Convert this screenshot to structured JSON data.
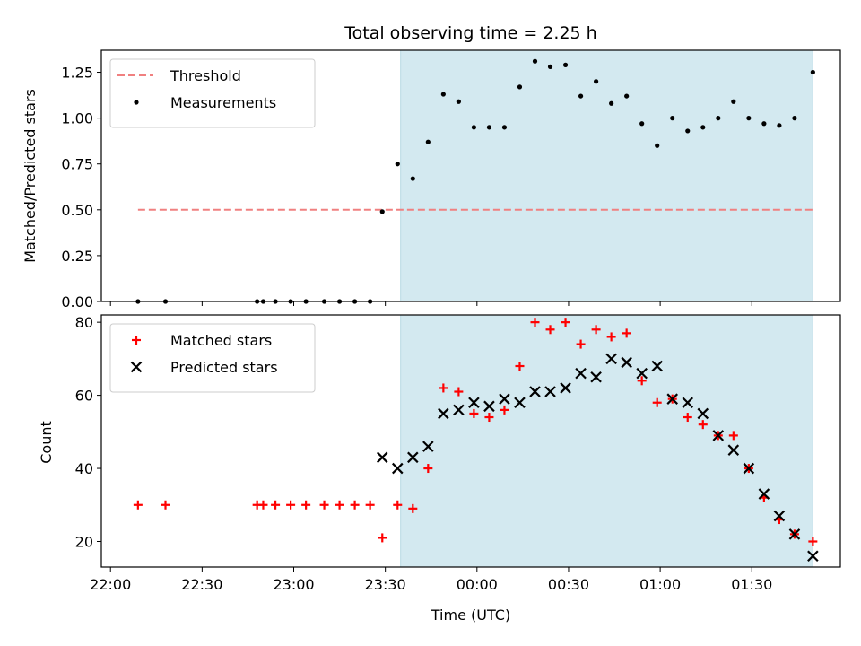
{
  "chart_data": {
    "type": "scatter",
    "title": "Total observing time = 2.25 h",
    "xlabel": "Time (UTC)",
    "x_tick_labels": [
      "22:00",
      "22:30",
      "23:00",
      "23:30",
      "00:00",
      "00:30",
      "01:00",
      "01:30"
    ],
    "x_ticks": [
      "22:00",
      "22:30",
      "23:00",
      "23:30",
      "00:00",
      "00:30",
      "01:00",
      "01:30"
    ],
    "x_range": [
      "21:57",
      "01:59"
    ],
    "shaded_interval": [
      "23:35",
      "01:50"
    ],
    "shade_color": "#d3e9f0",
    "panels": [
      {
        "ylabel": "Matched/Predicted stars",
        "ylim": [
          0,
          1.37
        ],
        "y_ticks": [
          0.0,
          0.25,
          0.5,
          0.75,
          1.0,
          1.25
        ],
        "y_tick_labels": [
          "0.00",
          "0.25",
          "0.50",
          "0.75",
          "1.00",
          "1.25"
        ],
        "legend_position": "top-left",
        "series": [
          {
            "name": "Threshold",
            "kind": "dashed-line",
            "color": "#f08080",
            "x": [
              "22:09",
              "01:50"
            ],
            "y": [
              0.5,
              0.5
            ]
          },
          {
            "name": "Measurements",
            "kind": "dot",
            "color": "#000000",
            "x": [
              "22:09",
              "22:18",
              "22:48",
              "22:50",
              "22:54",
              "22:59",
              "23:04",
              "23:10",
              "23:15",
              "23:20",
              "23:25",
              "23:29",
              "23:34",
              "23:39",
              "23:44",
              "23:49",
              "23:54",
              "23:59",
              "24:04",
              "24:09",
              "24:14",
              "24:19",
              "24:24",
              "24:29",
              "24:34",
              "24:39",
              "24:44",
              "24:49",
              "24:54",
              "24:59",
              "25:04",
              "25:09",
              "25:14",
              "25:19",
              "25:24",
              "25:29",
              "25:34",
              "25:39",
              "25:44",
              "25:50"
            ],
            "y": [
              0,
              0,
              0,
              0,
              0,
              0,
              0,
              0,
              0,
              0,
              0,
              0.49,
              0.75,
              0.67,
              0.87,
              1.13,
              1.09,
              0.95,
              0.95,
              0.95,
              1.17,
              1.31,
              1.28,
              1.29,
              1.12,
              1.2,
              1.08,
              1.12,
              0.97,
              0.85,
              1.0,
              0.93,
              0.95,
              1.0,
              1.09,
              1.0,
              0.97,
              0.96,
              1.0,
              1.25
            ]
          }
        ]
      },
      {
        "ylabel": "Count",
        "ylim": [
          13,
          82
        ],
        "y_ticks": [
          20,
          40,
          60,
          80
        ],
        "y_tick_labels": [
          "20",
          "40",
          "60",
          "80"
        ],
        "legend_position": "top-left",
        "series": [
          {
            "name": "Matched stars",
            "kind": "plus",
            "color": "#ff0000",
            "x": [
              "22:09",
              "22:18",
              "22:48",
              "22:50",
              "22:54",
              "22:59",
              "23:04",
              "23:10",
              "23:15",
              "23:20",
              "23:25",
              "23:29",
              "23:34",
              "23:39",
              "23:44",
              "23:49",
              "23:54",
              "23:59",
              "24:04",
              "24:09",
              "24:14",
              "24:19",
              "24:24",
              "24:29",
              "24:34",
              "24:39",
              "24:44",
              "24:49",
              "24:54",
              "24:59",
              "25:04",
              "25:09",
              "25:14",
              "25:19",
              "25:24",
              "25:29",
              "25:34",
              "25:39",
              "25:44",
              "25:50"
            ],
            "y": [
              30,
              30,
              30,
              30,
              30,
              30,
              30,
              30,
              30,
              30,
              30,
              21,
              30,
              29,
              40,
              62,
              61,
              55,
              54,
              56,
              68,
              80,
              78,
              80,
              74,
              78,
              76,
              77,
              64,
              58,
              59,
              54,
              52,
              49,
              49,
              40,
              32,
              26,
              22,
              20
            ]
          },
          {
            "name": "Predicted stars",
            "kind": "x",
            "color": "#000000",
            "x": [
              "23:29",
              "23:34",
              "23:39",
              "23:44",
              "23:49",
              "23:54",
              "23:59",
              "24:04",
              "24:09",
              "24:14",
              "24:19",
              "24:24",
              "24:29",
              "24:34",
              "24:39",
              "24:44",
              "24:49",
              "24:54",
              "24:59",
              "25:04",
              "25:09",
              "25:14",
              "25:19",
              "25:24",
              "25:29",
              "25:34",
              "25:39",
              "25:44",
              "25:50"
            ],
            "y": [
              43,
              40,
              43,
              46,
              55,
              56,
              58,
              57,
              59,
              58,
              61,
              61,
              62,
              66,
              65,
              70,
              69,
              66,
              68,
              59,
              58,
              55,
              49,
              45,
              40,
              33,
              27,
              22,
              16
            ]
          }
        ]
      }
    ]
  }
}
